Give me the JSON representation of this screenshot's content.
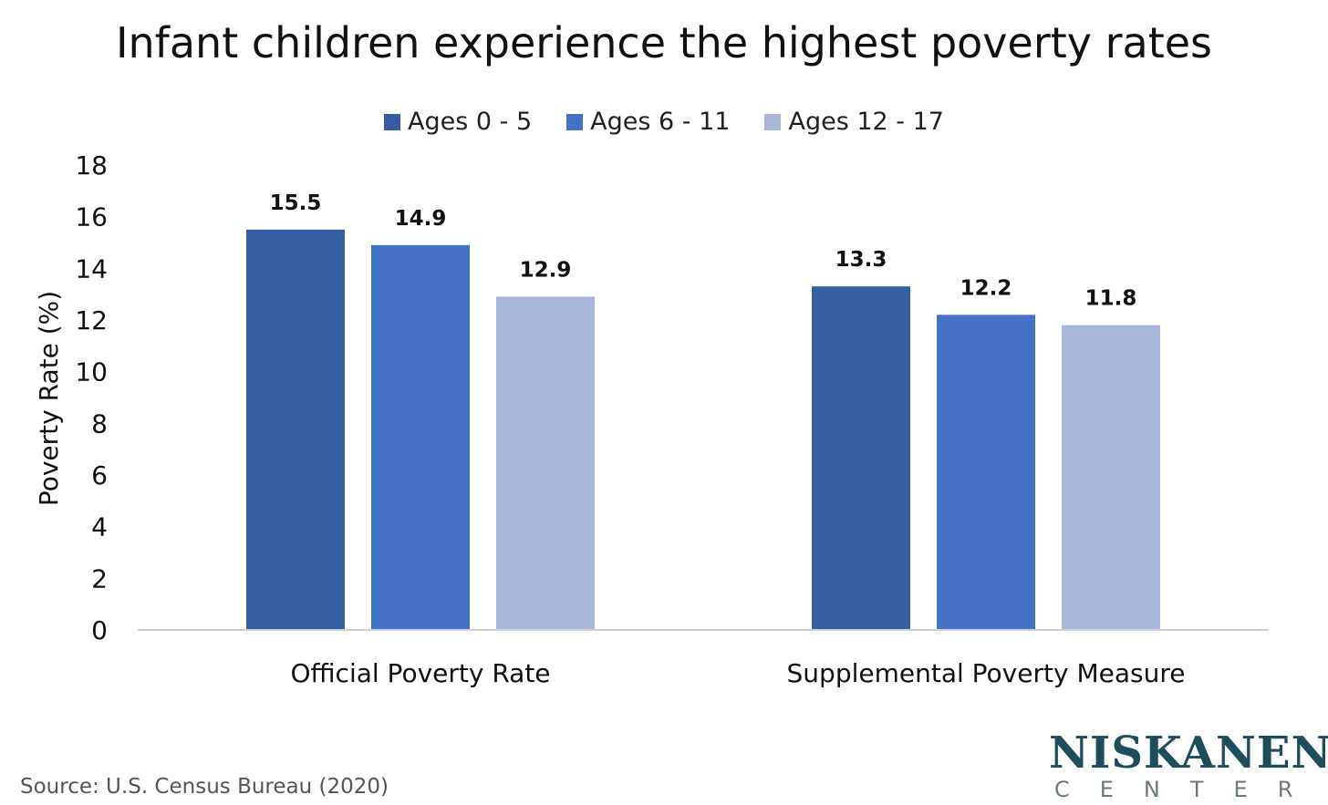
{
  "chart_data": {
    "type": "bar",
    "title": "Infant children experience the highest poverty rates",
    "ylabel": "Poverty Rate (%)",
    "xlabel": "",
    "ylim": [
      0,
      18
    ],
    "yticks": [
      0,
      2,
      4,
      6,
      8,
      10,
      12,
      14,
      16,
      18
    ],
    "categories": [
      "Official Poverty Rate",
      "Supplemental Poverty Measure"
    ],
    "series": [
      {
        "name": "Ages 0 - 5",
        "values": [
          15.5,
          13.3
        ],
        "color": "#345da2"
      },
      {
        "name": "Ages 6 - 11",
        "values": [
          14.9,
          12.2
        ],
        "color": "#4472c6"
      },
      {
        "name": "Ages 12 - 17",
        "values": [
          12.9,
          11.8
        ],
        "color": "#a9b5da"
      }
    ],
    "legend_position": "top",
    "grid": false,
    "data_labels": true
  },
  "source": "Source: U.S. Census Bureau (2020)",
  "brand": {
    "name": "NISKANEN",
    "sub": "CENTER"
  }
}
